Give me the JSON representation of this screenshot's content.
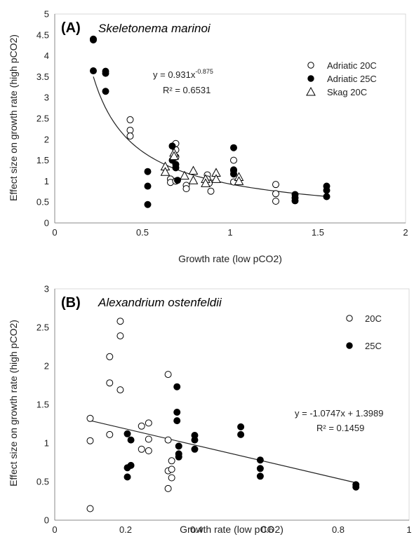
{
  "chart_data": [
    {
      "type": "scatter",
      "panel_label": "(A)",
      "species": "Skeletonema marinoi",
      "xlabel": "Growth rate (low pCO2)",
      "ylabel": "Effect size on growth rate (high pCO2)",
      "xlim": [
        0,
        2
      ],
      "ylim": [
        0,
        5
      ],
      "xticks": [
        "0",
        "0.5",
        "1",
        "1.5",
        "2"
      ],
      "yticks": [
        "0",
        "0.5",
        "1",
        "1.5",
        "2",
        "2.5",
        "3",
        "3.5",
        "4",
        "4.5",
        "5"
      ],
      "legend": {
        "placement": "top-right"
      },
      "series": [
        {
          "name": "Adriatic 20C",
          "marker": "open-circle",
          "x": [
            0.43,
            0.43,
            0.43,
            0.66,
            0.66,
            0.69,
            0.69,
            0.69,
            0.69,
            0.75,
            0.75,
            0.87,
            0.87,
            0.88,
            0.89,
            1.02,
            1.02,
            1.02,
            1.26,
            1.26,
            1.26
          ],
          "y": [
            2.47,
            2.22,
            2.08,
            1.05,
            0.97,
            1.9,
            1.75,
            1.58,
            1.0,
            0.9,
            0.82,
            1.15,
            1.05,
            0.95,
            0.76,
            1.5,
            1.25,
            0.98,
            0.92,
            0.7,
            0.52
          ]
        },
        {
          "name": "Adriatic 25C",
          "marker": "filled-circle",
          "x": [
            0.22,
            0.22,
            0.22,
            0.29,
            0.29,
            0.29,
            0.53,
            0.53,
            0.53,
            0.67,
            0.67,
            0.69,
            0.69,
            0.7,
            1.02,
            1.02,
            1.02,
            1.37,
            1.37,
            1.37,
            1.55,
            1.55,
            1.55
          ],
          "y": [
            4.4,
            4.38,
            3.64,
            3.63,
            3.58,
            3.15,
            1.23,
            0.88,
            0.44,
            1.84,
            1.5,
            1.4,
            1.32,
            1.02,
            1.8,
            1.27,
            1.17,
            0.68,
            0.6,
            0.53,
            0.88,
            0.78,
            0.63
          ]
        },
        {
          "name": "Skag 20C",
          "marker": "open-triangle",
          "x": [
            0.63,
            0.63,
            0.68,
            0.68,
            0.74,
            0.79,
            0.79,
            0.86,
            0.86,
            0.92,
            0.92,
            1.05,
            1.05
          ],
          "y": [
            1.35,
            1.22,
            1.68,
            1.6,
            1.13,
            1.25,
            1.02,
            1.05,
            0.95,
            1.2,
            1.05,
            1.1,
            1.0
          ]
        }
      ],
      "trendline": {
        "kind": "power",
        "a": 0.931,
        "b": -0.875,
        "x_range": [
          0.22,
          1.55
        ],
        "equation_prefix": "y = 0.931x",
        "equation_exponent": "-0.875",
        "r2_label": "R² = 0.6531"
      }
    },
    {
      "type": "scatter",
      "panel_label": "(B)",
      "species": "Alexandrium ostenfeldii",
      "xlabel": "Growth rate (low pCO2)",
      "ylabel": "Effect size on growth rate (high pCO2)",
      "xlim": [
        0,
        1
      ],
      "ylim": [
        0,
        3
      ],
      "xticks": [
        "0",
        "0.2",
        "0.4",
        "0.6",
        "0.8",
        "1"
      ],
      "yticks": [
        "0",
        "0.5",
        "1",
        "1.5",
        "2",
        "2.5",
        "3"
      ],
      "legend": {
        "placement": "top-right"
      },
      "series": [
        {
          "name": "20C",
          "marker": "open-circle",
          "x": [
            0.1,
            0.1,
            0.1,
            0.155,
            0.155,
            0.155,
            0.185,
            0.185,
            0.185,
            0.245,
            0.245,
            0.265,
            0.265,
            0.265,
            0.32,
            0.32,
            0.32,
            0.32,
            0.33,
            0.33,
            0.33
          ],
          "y": [
            1.32,
            1.03,
            0.15,
            2.12,
            1.78,
            1.11,
            2.58,
            2.39,
            1.69,
            1.22,
            0.92,
            1.26,
            1.05,
            0.9,
            1.89,
            1.04,
            0.64,
            0.41,
            0.77,
            0.66,
            0.55
          ]
        },
        {
          "name": "25C",
          "marker": "filled-circle",
          "x": [
            0.205,
            0.205,
            0.205,
            0.215,
            0.215,
            0.345,
            0.345,
            0.345,
            0.35,
            0.35,
            0.35,
            0.395,
            0.395,
            0.395,
            0.525,
            0.525,
            0.58,
            0.58,
            0.58,
            0.85,
            0.85
          ],
          "y": [
            1.12,
            0.68,
            0.56,
            1.04,
            0.71,
            1.73,
            1.4,
            1.29,
            0.96,
            0.86,
            0.82,
            1.1,
            1.04,
            0.92,
            1.21,
            1.11,
            0.78,
            0.67,
            0.57,
            0.46,
            0.43
          ]
        }
      ],
      "trendline": {
        "kind": "linear",
        "slope": -1.0747,
        "intercept": 1.3989,
        "x_range": [
          0.1,
          0.85
        ],
        "equation": "y = -1.0747x + 1.3989",
        "r2_label": "R² = 0.1459"
      }
    }
  ]
}
